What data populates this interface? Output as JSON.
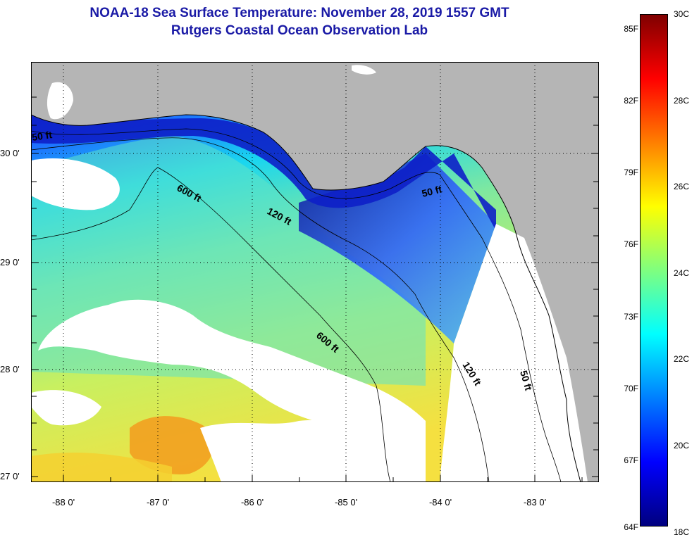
{
  "title": {
    "line1": "NOAA-18 Sea Surface Temperature:  November 28, 2019 1557 GMT",
    "line2": "Rutgers Coastal Ocean Observation Lab"
  },
  "map": {
    "lat_ticks": [
      "30 0'",
      "29 0'",
      "28 0'",
      "27 0'"
    ],
    "lon_ticks": [
      "-88 0'",
      "-87 0'",
      "-86 0'",
      "-85 0'",
      "-84 0'",
      "-83 0'"
    ],
    "contour_labels": [
      "50 ft",
      "600 ft",
      "120 ft",
      "50 ft",
      "600 ft",
      "120 ft",
      "50 ft"
    ],
    "colors": {
      "land": "#b5b5b5",
      "cloud": "#ffffff",
      "contour": "#000000"
    }
  },
  "colorbar": {
    "fahrenheit_labels": [
      "85F",
      "82F",
      "79F",
      "76F",
      "73F",
      "70F",
      "67F",
      "64F"
    ],
    "celsius_labels": [
      "30C",
      "28C",
      "26C",
      "24C",
      "22C",
      "20C",
      "18C"
    ],
    "colors": [
      "#00007f",
      "#0000ff",
      "#007fff",
      "#00ffff",
      "#7fff7f",
      "#ffff00",
      "#ff7f00",
      "#ff0000",
      "#7f0000"
    ]
  }
}
